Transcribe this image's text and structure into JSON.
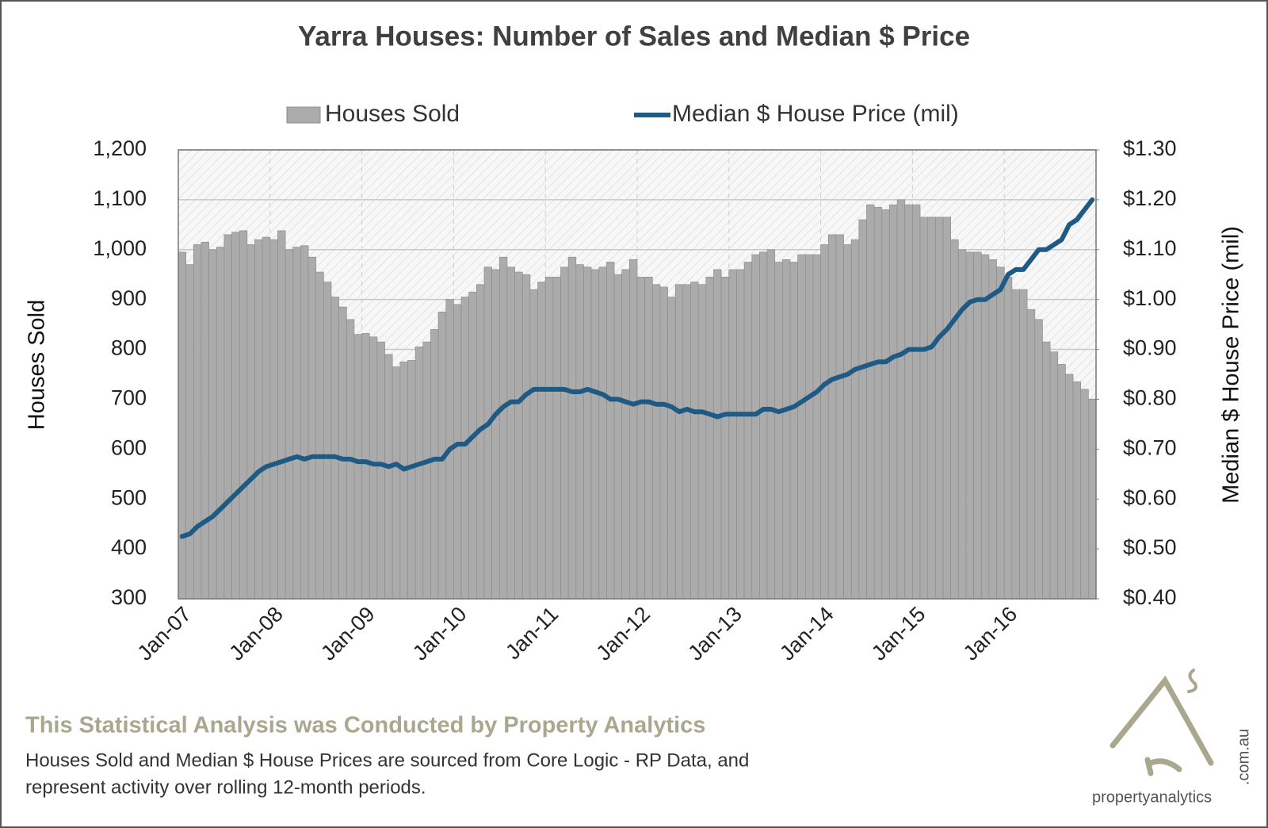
{
  "chart_data": {
    "type": "bar",
    "title": "Yarra Houses: Number of Sales and Median $ Price",
    "categories": [
      "Jan-07",
      null,
      null,
      null,
      null,
      null,
      null,
      null,
      null,
      null,
      null,
      null,
      "Jan-08",
      null,
      null,
      null,
      null,
      null,
      null,
      null,
      null,
      null,
      null,
      null,
      "Jan-09",
      null,
      null,
      null,
      null,
      null,
      null,
      null,
      null,
      null,
      null,
      null,
      "Jan-10",
      null,
      null,
      null,
      null,
      null,
      null,
      null,
      null,
      null,
      null,
      null,
      "Jan-11",
      null,
      null,
      null,
      null,
      null,
      null,
      null,
      null,
      null,
      null,
      null,
      "Jan-12",
      null,
      null,
      null,
      null,
      null,
      null,
      null,
      null,
      null,
      null,
      null,
      "Jan-13",
      null,
      null,
      null,
      null,
      null,
      null,
      null,
      null,
      null,
      null,
      null,
      "Jan-14",
      null,
      null,
      null,
      null,
      null,
      null,
      null,
      null,
      null,
      null,
      null,
      "Jan-15",
      null,
      null,
      null,
      null,
      null,
      null,
      null,
      null,
      null,
      null,
      null,
      "Jan-16",
      null,
      null,
      null,
      null,
      null,
      null,
      null,
      null,
      null,
      null,
      null
    ],
    "series": [
      {
        "name": "Houses Sold",
        "type": "bar",
        "color": "#ababab",
        "values": [
          995,
          970,
          1010,
          1015,
          1000,
          1005,
          1030,
          1035,
          1038,
          1010,
          1020,
          1025,
          1020,
          1038,
          1000,
          1005,
          1008,
          985,
          955,
          935,
          905,
          885,
          860,
          830,
          832,
          825,
          815,
          790,
          765,
          775,
          778,
          805,
          815,
          840,
          875,
          900,
          890,
          905,
          915,
          930,
          965,
          960,
          985,
          965,
          955,
          950,
          920,
          935,
          945,
          945,
          965,
          985,
          970,
          965,
          960,
          965,
          975,
          950,
          960,
          980,
          945,
          945,
          930,
          925,
          905,
          930,
          930,
          935,
          930,
          945,
          960,
          945,
          960,
          960,
          975,
          990,
          995,
          1000,
          975,
          980,
          975,
          990,
          990,
          990,
          1010,
          1030,
          1030,
          1010,
          1020,
          1060,
          1090,
          1085,
          1080,
          1090,
          1100,
          1090,
          1090,
          1065,
          1065,
          1065,
          1065,
          1020,
          1000,
          995,
          995,
          990,
          980,
          965,
          945,
          920,
          920,
          880,
          860,
          815,
          795,
          770,
          750,
          735,
          720,
          700
        ]
      },
      {
        "name": "Median $ House Price (mil)",
        "type": "line",
        "axis": "y2",
        "color": "#1f5a85",
        "values": [
          0.525,
          0.53,
          0.545,
          0.555,
          0.565,
          0.58,
          0.595,
          0.61,
          0.625,
          0.64,
          0.655,
          0.665,
          0.67,
          0.675,
          0.68,
          0.685,
          0.68,
          0.685,
          0.685,
          0.685,
          0.685,
          0.68,
          0.68,
          0.675,
          0.675,
          0.67,
          0.67,
          0.665,
          0.67,
          0.66,
          0.665,
          0.67,
          0.675,
          0.68,
          0.68,
          0.7,
          0.71,
          0.71,
          0.725,
          0.74,
          0.75,
          0.77,
          0.785,
          0.795,
          0.795,
          0.81,
          0.82,
          0.82,
          0.82,
          0.82,
          0.82,
          0.815,
          0.815,
          0.82,
          0.815,
          0.81,
          0.8,
          0.8,
          0.795,
          0.79,
          0.795,
          0.795,
          0.79,
          0.79,
          0.785,
          0.775,
          0.78,
          0.775,
          0.775,
          0.77,
          0.765,
          0.77,
          0.77,
          0.77,
          0.77,
          0.77,
          0.78,
          0.78,
          0.775,
          0.78,
          0.785,
          0.795,
          0.805,
          0.815,
          0.83,
          0.84,
          0.845,
          0.85,
          0.86,
          0.865,
          0.87,
          0.875,
          0.875,
          0.885,
          0.89,
          0.9,
          0.9,
          0.9,
          0.905,
          0.925,
          0.94,
          0.96,
          0.98,
          0.995,
          1.0,
          1.0,
          1.01,
          1.02,
          1.05,
          1.06,
          1.06,
          1.08,
          1.1,
          1.1,
          1.11,
          1.12,
          1.15,
          1.16,
          1.18,
          1.2
        ]
      }
    ],
    "ylabel": "Houses Sold",
    "y2label": "Median $ House Price (mil)",
    "ylim": [
      300,
      1200
    ],
    "yticks": [
      300,
      400,
      500,
      600,
      700,
      800,
      900,
      {
        "value": 1000,
        "label": "1,000"
      },
      {
        "value": 1100,
        "label": "1,100"
      },
      {
        "value": 1200,
        "label": "1,200"
      }
    ],
    "y2lim": [
      0.4,
      1.3
    ],
    "y2ticks": [
      {
        "value": 0.4,
        "label": "$0.40"
      },
      {
        "value": 0.5,
        "label": "$0.50"
      },
      {
        "value": 0.6,
        "label": "$0.60"
      },
      {
        "value": 0.7,
        "label": "$0.70"
      },
      {
        "value": 0.8,
        "label": "$0.80"
      },
      {
        "value": 0.9,
        "label": "$0.90"
      },
      {
        "value": 1.0,
        "label": "$1.00"
      },
      {
        "value": 1.1,
        "label": "$1.10"
      },
      {
        "value": 1.2,
        "label": "$1.20"
      },
      {
        "value": 1.3,
        "label": "$1.30"
      }
    ],
    "grid": true,
    "legend": "top"
  },
  "footer": {
    "heading": "This Statistical Analysis was Conducted by Property Analytics",
    "lines": [
      "Houses Sold and Median $ House Prices are sourced from Core Logic - RP Data, and",
      "represent activity over rolling 12-month periods."
    ]
  },
  "logo": {
    "name": "propertyanalytics",
    "domain": ".com.au"
  }
}
